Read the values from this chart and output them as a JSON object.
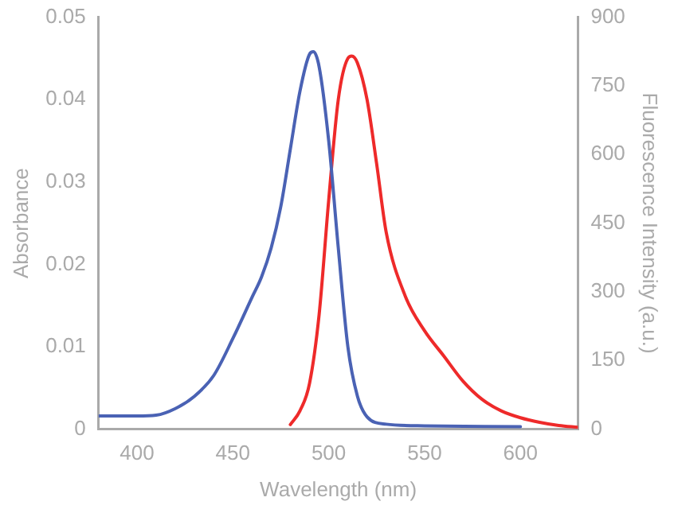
{
  "chart_data": {
    "type": "line",
    "xlabel": "Wavelength (nm)",
    "ylabel": "Absorbance",
    "y2label": "Fluorescence Intensity (a.u.)",
    "xlim": [
      380,
      630
    ],
    "xticks": [
      400,
      450,
      500,
      550,
      600
    ],
    "ylim": [
      0,
      0.05
    ],
    "yticks": [
      0,
      0.01,
      0.02,
      0.03,
      0.04,
      0.05
    ],
    "y2lim": [
      0,
      900
    ],
    "y2ticks": [
      0,
      150,
      300,
      450,
      600,
      750,
      900
    ],
    "grid": false,
    "legend": false,
    "marker": "none",
    "line_style": "solid",
    "series": [
      {
        "color": "#4a62b4",
        "axis": "y",
        "x": [
          380,
          390,
          400,
          410,
          420,
          430,
          440,
          450,
          460,
          465,
          470,
          475,
          480,
          485,
          490,
          492,
          495,
          500,
          505,
          510,
          515,
          520,
          530,
          550,
          600
        ],
        "values": [
          0.0016,
          0.0016,
          0.0016,
          0.0017,
          0.0025,
          0.004,
          0.0065,
          0.011,
          0.016,
          0.0185,
          0.022,
          0.027,
          0.034,
          0.041,
          0.0455,
          0.0458,
          0.044,
          0.035,
          0.022,
          0.01,
          0.004,
          0.0015,
          0.0006,
          0.0004,
          0.0003
        ]
      },
      {
        "color": "#ee2a2a",
        "axis": "y2",
        "x": [
          480,
          485,
          490,
          495,
          500,
          505,
          510,
          512,
          515,
          520,
          525,
          530,
          540,
          550,
          560,
          570,
          580,
          590,
          600,
          610,
          620,
          630
        ],
        "values": [
          10,
          40,
          100,
          250,
          500,
          720,
          810,
          815,
          800,
          720,
          580,
          430,
          290,
          215,
          160,
          105,
          65,
          40,
          25,
          15,
          8,
          4
        ]
      }
    ]
  }
}
